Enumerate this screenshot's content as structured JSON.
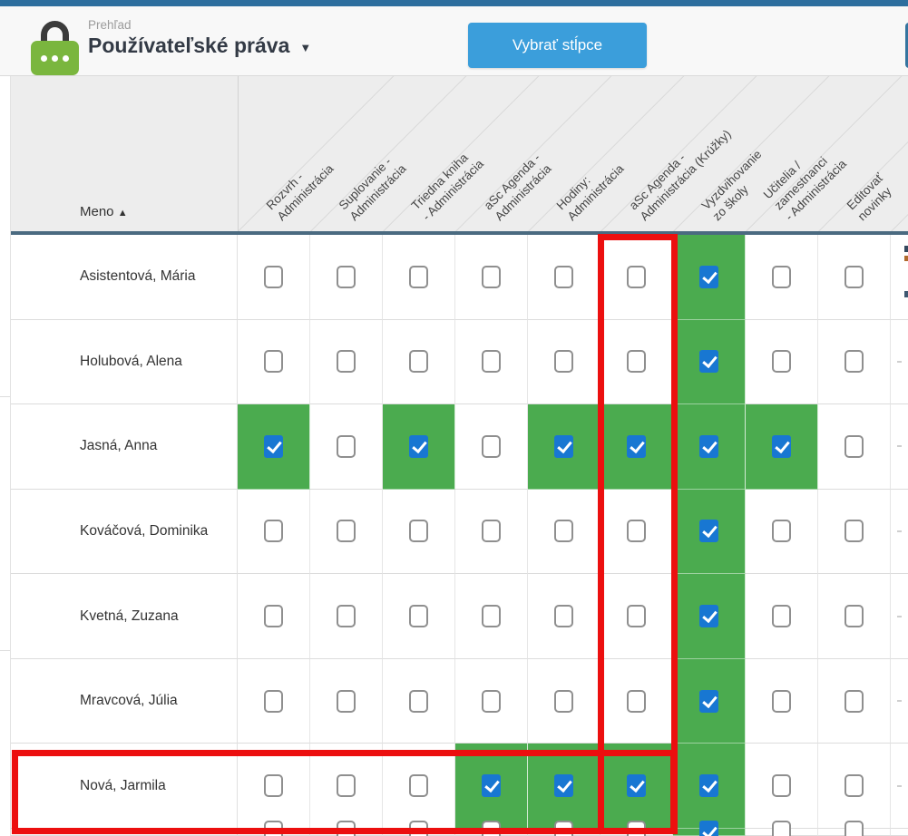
{
  "header": {
    "breadcrumb": "Prehľad",
    "title": "Používateľské práva",
    "caret_icon": "▼",
    "select_columns_button": "Vybrať stĺpce",
    "lock_icon": "user-rights-lock"
  },
  "table": {
    "name_column_header": "Meno",
    "sort_icon": "▲",
    "columns": [
      "Rozvrh -\nAdministrácia",
      "Suplovanie -\nAdministrácia",
      "Triedna kniha\n- Administrácia",
      "aSc Agenda -\nAdministrácia",
      "Hodiny:\nAdministrácia",
      "aSc Agenda -\nAdministrácia (Krúžky)",
      "Vyzdvihovanie\nzo školy",
      "Učitelia / zamestnanci\n- Administrácia",
      "Editovať\nnovinky"
    ],
    "rows": [
      {
        "name": "Asistentová, Mária",
        "checks": [
          0,
          0,
          0,
          0,
          0,
          0,
          1,
          0,
          0
        ]
      },
      {
        "name": "Holubová, Alena",
        "checks": [
          0,
          0,
          0,
          0,
          0,
          0,
          1,
          0,
          0
        ]
      },
      {
        "name": "Jasná, Anna",
        "checks": [
          1,
          0,
          1,
          0,
          1,
          1,
          1,
          1,
          0
        ]
      },
      {
        "name": "Kováčová, Dominika",
        "checks": [
          0,
          0,
          0,
          0,
          0,
          0,
          1,
          0,
          0
        ]
      },
      {
        "name": "Kvetná, Zuzana",
        "checks": [
          0,
          0,
          0,
          0,
          0,
          0,
          1,
          0,
          0
        ]
      },
      {
        "name": "Mravcová, Júlia",
        "checks": [
          0,
          0,
          0,
          0,
          0,
          0,
          1,
          0,
          0
        ]
      },
      {
        "name": "Nová, Jarmila",
        "checks": [
          0,
          0,
          0,
          1,
          1,
          1,
          1,
          0,
          0
        ]
      }
    ],
    "partial_row_checks": [
      0,
      0,
      0,
      0,
      0,
      0,
      1,
      0,
      0
    ]
  },
  "highlights": {
    "highlighted_column_index": 5,
    "highlighted_row_index": 6,
    "color": "#ec0f0f"
  },
  "colors": {
    "topbar": "#2d6e9e",
    "button": "#3b9edb",
    "checked_cell_green": "#4bab4f",
    "checkbox_blue": "#1877d2",
    "header_underline": "#4a6a80",
    "lock_green": "#7ab63e"
  }
}
